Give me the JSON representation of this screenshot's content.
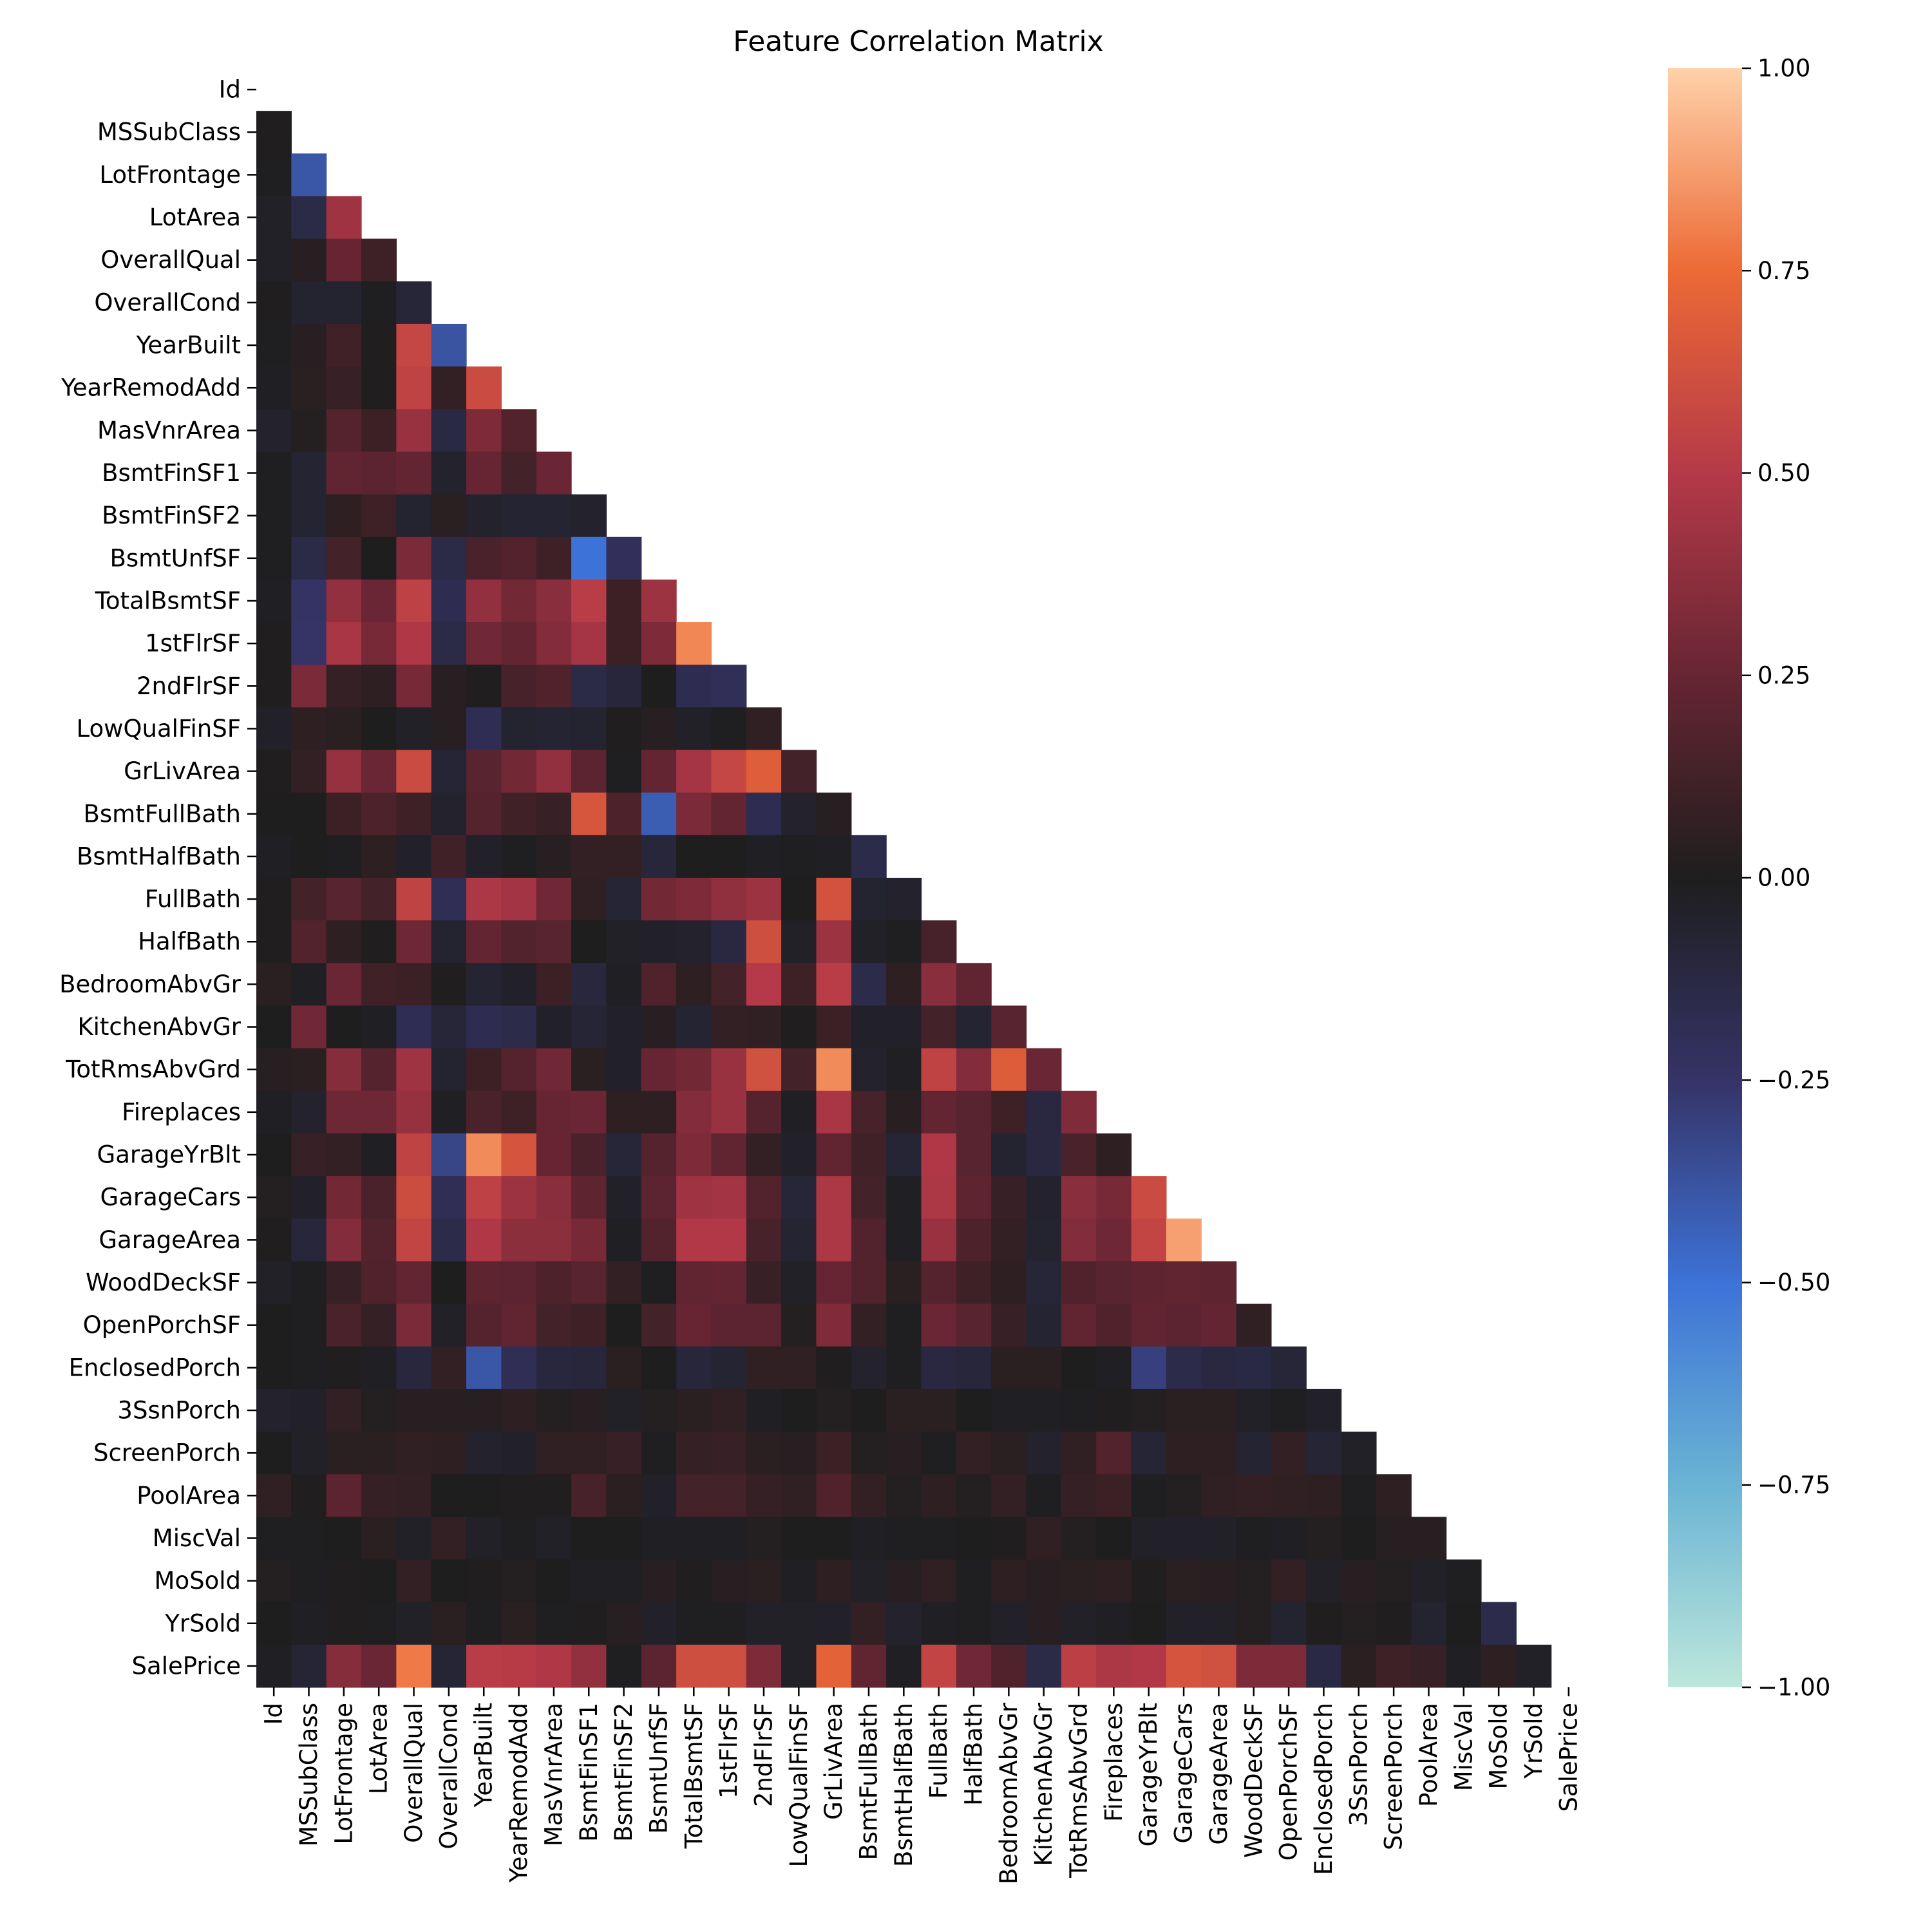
{
  "chart_data": {
    "type": "heatmap",
    "title": "Feature Correlation Matrix",
    "mask": "upper-triangle-including-diagonal",
    "labels": [
      "Id",
      "MSSubClass",
      "LotFrontage",
      "LotArea",
      "OverallQual",
      "OverallCond",
      "YearBuilt",
      "YearRemodAdd",
      "MasVnrArea",
      "BsmtFinSF1",
      "BsmtFinSF2",
      "BsmtUnfSF",
      "TotalBsmtSF",
      "1stFlrSF",
      "2ndFlrSF",
      "LowQualFinSF",
      "GrLivArea",
      "BsmtFullBath",
      "BsmtHalfBath",
      "FullBath",
      "HalfBath",
      "BedroomAbvGr",
      "KitchenAbvGr",
      "TotRmsAbvGrd",
      "Fireplaces",
      "GarageYrBlt",
      "GarageCars",
      "GarageArea",
      "WoodDeckSF",
      "OpenPorchSF",
      "EnclosedPorch",
      "3SsnPorch",
      "ScreenPorch",
      "PoolArea",
      "MiscVal",
      "MoSold",
      "YrSold",
      "SalePrice"
    ],
    "values": [
      [],
      [
        0.01
      ],
      [
        -0.01,
        -0.39
      ],
      [
        -0.03,
        -0.14,
        0.43
      ],
      [
        -0.03,
        0.03,
        0.25,
        0.11
      ],
      [
        0.01,
        -0.06,
        -0.06,
        -0.01,
        -0.09
      ],
      [
        -0.01,
        0.03,
        0.12,
        0.01,
        0.57,
        -0.38
      ],
      [
        -0.02,
        0.04,
        0.09,
        0.01,
        0.55,
        0.07,
        0.59
      ],
      [
        -0.05,
        0.02,
        0.19,
        0.1,
        0.41,
        -0.13,
        0.32,
        0.18
      ],
      [
        -0.01,
        -0.07,
        0.23,
        0.21,
        0.24,
        -0.05,
        0.25,
        0.13,
        0.26
      ],
      [
        -0.01,
        -0.07,
        0.05,
        0.11,
        -0.06,
        0.04,
        -0.05,
        -0.07,
        -0.07,
        -0.05
      ],
      [
        -0.01,
        -0.14,
        0.13,
        -0.0,
        0.31,
        -0.14,
        0.15,
        0.18,
        0.11,
        -0.5,
        -0.21
      ],
      [
        -0.02,
        -0.24,
        0.39,
        0.26,
        0.54,
        -0.17,
        0.39,
        0.29,
        0.36,
        0.52,
        0.1,
        0.42
      ],
      [
        0.01,
        -0.25,
        0.46,
        0.3,
        0.48,
        -0.14,
        0.28,
        0.24,
        0.34,
        0.45,
        0.1,
        0.32,
        0.82
      ],
      [
        0.01,
        0.31,
        0.08,
        0.05,
        0.3,
        0.03,
        0.01,
        0.14,
        0.17,
        -0.14,
        -0.1,
        0.0,
        -0.17,
        -0.2
      ],
      [
        -0.04,
        0.05,
        0.04,
        0.0,
        -0.03,
        0.03,
        -0.18,
        -0.06,
        -0.07,
        -0.06,
        0.01,
        0.03,
        -0.03,
        -0.01,
        0.06
      ],
      [
        0.01,
        0.07,
        0.4,
        0.26,
        0.59,
        -0.08,
        0.2,
        0.29,
        0.39,
        0.21,
        -0.01,
        0.24,
        0.45,
        0.57,
        0.69,
        0.13
      ],
      [
        0.0,
        0.0,
        0.1,
        0.16,
        0.11,
        -0.05,
        0.19,
        0.12,
        0.09,
        0.65,
        0.16,
        -0.42,
        0.31,
        0.24,
        -0.17,
        -0.05,
        0.03
      ],
      [
        -0.02,
        0.0,
        -0.01,
        0.05,
        -0.04,
        0.12,
        -0.04,
        -0.01,
        0.03,
        0.07,
        0.07,
        -0.1,
        0.0,
        0.0,
        -0.02,
        -0.01,
        -0.02,
        -0.15
      ],
      [
        0.01,
        0.13,
        0.2,
        0.13,
        0.55,
        -0.19,
        0.47,
        0.44,
        0.28,
        0.06,
        -0.08,
        0.29,
        0.32,
        0.38,
        0.42,
        0.0,
        0.63,
        -0.06,
        -0.05
      ],
      [
        0.01,
        0.18,
        0.05,
        0.01,
        0.27,
        -0.06,
        0.24,
        0.18,
        0.2,
        0.0,
        -0.03,
        -0.04,
        -0.05,
        -0.12,
        0.61,
        -0.03,
        0.42,
        -0.03,
        -0.01,
        0.14
      ],
      [
        0.04,
        -0.02,
        0.26,
        0.12,
        0.1,
        0.01,
        -0.07,
        -0.04,
        0.1,
        -0.11,
        -0.02,
        0.17,
        0.05,
        0.13,
        0.5,
        0.11,
        0.52,
        -0.15,
        0.05,
        0.36,
        0.23
      ],
      [
        0.0,
        0.28,
        0.0,
        -0.02,
        -0.18,
        -0.09,
        -0.17,
        -0.15,
        -0.04,
        -0.08,
        -0.04,
        0.03,
        -0.07,
        0.07,
        0.06,
        0.01,
        0.1,
        -0.04,
        -0.04,
        0.13,
        -0.07,
        0.2
      ],
      [
        0.03,
        0.04,
        0.35,
        0.19,
        0.43,
        -0.06,
        0.1,
        0.19,
        0.28,
        0.04,
        -0.04,
        0.25,
        0.29,
        0.41,
        0.62,
        0.13,
        0.83,
        -0.05,
        -0.02,
        0.55,
        0.34,
        0.68,
        0.26
      ],
      [
        -0.02,
        -0.05,
        0.27,
        0.27,
        0.4,
        -0.02,
        0.15,
        0.11,
        0.25,
        0.26,
        0.05,
        0.05,
        0.34,
        0.41,
        0.19,
        -0.02,
        0.46,
        0.14,
        0.03,
        0.24,
        0.2,
        0.11,
        -0.12,
        0.33
      ],
      [
        0.0,
        0.09,
        0.07,
        -0.02,
        0.55,
        -0.32,
        0.83,
        0.64,
        0.25,
        0.15,
        -0.09,
        0.19,
        0.32,
        0.23,
        0.07,
        -0.04,
        0.23,
        0.12,
        -0.08,
        0.48,
        0.2,
        -0.06,
        -0.12,
        0.15,
        0.05
      ],
      [
        0.02,
        -0.04,
        0.29,
        0.15,
        0.6,
        -0.19,
        0.54,
        0.42,
        0.36,
        0.22,
        -0.04,
        0.21,
        0.43,
        0.44,
        0.18,
        -0.09,
        0.47,
        0.13,
        -0.02,
        0.47,
        0.22,
        0.09,
        -0.05,
        0.36,
        0.3,
        0.59
      ],
      [
        0.01,
        -0.1,
        0.34,
        0.18,
        0.56,
        -0.15,
        0.48,
        0.37,
        0.37,
        0.3,
        -0.02,
        0.18,
        0.49,
        0.49,
        0.14,
        -0.07,
        0.47,
        0.18,
        -0.02,
        0.41,
        0.16,
        0.07,
        -0.06,
        0.34,
        0.27,
        0.56,
        0.88
      ],
      [
        -0.03,
        -0.01,
        0.09,
        0.17,
        0.24,
        -0.0,
        0.22,
        0.21,
        0.16,
        0.2,
        0.07,
        -0.01,
        0.23,
        0.24,
        0.09,
        -0.03,
        0.25,
        0.18,
        0.04,
        0.19,
        0.11,
        0.05,
        -0.09,
        0.17,
        0.2,
        0.22,
        0.23,
        0.22
      ],
      [
        0.0,
        -0.01,
        0.15,
        0.08,
        0.31,
        -0.03,
        0.19,
        0.23,
        0.13,
        0.11,
        0.0,
        0.13,
        0.25,
        0.21,
        0.21,
        0.02,
        0.33,
        0.07,
        -0.01,
        0.26,
        0.2,
        0.09,
        -0.07,
        0.23,
        0.17,
        0.23,
        0.21,
        0.24,
        0.06
      ],
      [
        0.0,
        -0.01,
        0.01,
        -0.02,
        -0.11,
        0.07,
        -0.39,
        -0.19,
        -0.11,
        -0.1,
        0.04,
        -0.0,
        -0.1,
        -0.07,
        0.06,
        0.06,
        0.01,
        -0.05,
        -0.01,
        -0.12,
        -0.1,
        0.04,
        0.04,
        0.0,
        -0.02,
        -0.3,
        -0.15,
        -0.12,
        -0.13,
        -0.09
      ],
      [
        -0.05,
        -0.04,
        0.07,
        0.02,
        0.03,
        0.03,
        0.03,
        0.05,
        0.02,
        0.03,
        -0.03,
        0.02,
        0.04,
        0.06,
        -0.02,
        -0.0,
        0.02,
        -0.0,
        0.04,
        0.04,
        -0.0,
        -0.02,
        -0.02,
        -0.01,
        0.01,
        0.02,
        0.04,
        0.04,
        -0.03,
        -0.01,
        -0.04
      ],
      [
        0.0,
        -0.03,
        0.04,
        0.04,
        0.06,
        0.05,
        -0.05,
        -0.04,
        0.06,
        0.06,
        0.09,
        -0.01,
        0.08,
        0.09,
        0.04,
        0.03,
        0.1,
        0.02,
        0.03,
        -0.01,
        0.07,
        0.04,
        -0.05,
        0.06,
        0.18,
        -0.08,
        0.05,
        0.05,
        -0.07,
        0.07,
        -0.08,
        -0.03
      ],
      [
        0.06,
        0.01,
        0.21,
        0.08,
        0.07,
        -0.0,
        0.0,
        0.01,
        0.01,
        0.14,
        0.04,
        -0.04,
        0.13,
        0.13,
        0.08,
        0.06,
        0.17,
        0.07,
        0.02,
        0.05,
        0.02,
        0.07,
        -0.01,
        0.08,
        0.1,
        -0.01,
        0.02,
        0.06,
        0.07,
        0.06,
        0.05,
        -0.01,
        0.05
      ],
      [
        -0.01,
        -0.01,
        0.0,
        0.04,
        -0.03,
        0.07,
        -0.03,
        -0.01,
        -0.03,
        0.0,
        0.0,
        -0.02,
        -0.02,
        -0.02,
        0.02,
        -0.0,
        -0.0,
        -0.02,
        -0.01,
        -0.01,
        0.0,
        0.01,
        0.06,
        0.02,
        0.0,
        -0.03,
        -0.04,
        -0.03,
        -0.01,
        -0.02,
        0.02,
        0.0,
        0.03,
        0.03
      ],
      [
        0.02,
        -0.01,
        0.01,
        0.0,
        0.07,
        -0.0,
        0.01,
        0.02,
        0.0,
        -0.02,
        -0.02,
        0.03,
        0.01,
        0.03,
        0.04,
        -0.02,
        0.05,
        -0.03,
        0.03,
        0.06,
        -0.01,
        0.05,
        0.03,
        0.04,
        0.05,
        0.01,
        0.04,
        0.03,
        0.02,
        0.07,
        -0.03,
        0.03,
        0.02,
        -0.03,
        -0.01
      ],
      [
        0.0,
        -0.02,
        0.01,
        -0.01,
        -0.03,
        0.04,
        -0.01,
        0.04,
        -0.01,
        0.01,
        0.03,
        -0.04,
        -0.01,
        -0.01,
        -0.03,
        -0.03,
        -0.04,
        0.07,
        -0.05,
        -0.02,
        -0.01,
        -0.04,
        0.03,
        -0.03,
        -0.02,
        -0.0,
        -0.04,
        -0.03,
        0.02,
        -0.06,
        0.01,
        0.02,
        0.01,
        -0.06,
        0.0,
        -0.15
      ],
      [
        -0.02,
        -0.08,
        0.35,
        0.26,
        0.79,
        -0.08,
        0.52,
        0.51,
        0.48,
        0.39,
        -0.01,
        0.21,
        0.61,
        0.61,
        0.32,
        -0.03,
        0.71,
        0.23,
        -0.02,
        0.56,
        0.28,
        0.17,
        -0.14,
        0.53,
        0.47,
        0.49,
        0.64,
        0.62,
        0.32,
        0.32,
        -0.13,
        0.04,
        0.11,
        0.09,
        -0.02,
        0.05,
        -0.03
      ]
    ],
    "colorbar": {
      "min": -1.0,
      "max": 1.0,
      "ticks": [
        1.0,
        0.75,
        0.5,
        0.25,
        0.0,
        -0.25,
        -0.5,
        -0.75,
        -1.0
      ],
      "tick_labels": [
        "1.00",
        "0.75",
        "0.50",
        "0.25",
        "0.00",
        "−0.25",
        "−0.50",
        "−0.75",
        "−1.00"
      ],
      "colormap": "icefire",
      "stops": [
        {
          "v": -1.0,
          "color": "#bde7db"
        },
        {
          "v": -0.75,
          "color": "#6ab4d4"
        },
        {
          "v": -0.5,
          "color": "#3d72d7"
        },
        {
          "v": -0.25,
          "color": "#363367"
        },
        {
          "v": 0.0,
          "color": "#1e1e1e"
        },
        {
          "v": 0.25,
          "color": "#672533"
        },
        {
          "v": 0.5,
          "color": "#b53948"
        },
        {
          "v": 0.75,
          "color": "#ec6a35"
        },
        {
          "v": 1.0,
          "color": "#ffd1a9"
        }
      ]
    }
  }
}
